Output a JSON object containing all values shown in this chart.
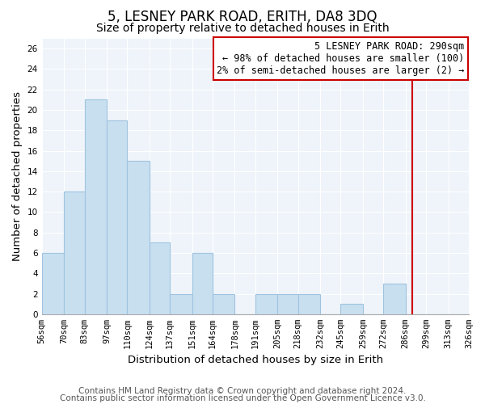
{
  "title": "5, LESNEY PARK ROAD, ERITH, DA8 3DQ",
  "subtitle": "Size of property relative to detached houses in Erith",
  "xlabel": "Distribution of detached houses by size in Erith",
  "ylabel": "Number of detached properties",
  "bar_color": "#c8dff0",
  "bar_edge_color": "#a0c4df",
  "tick_labels": [
    "56sqm",
    "70sqm",
    "83sqm",
    "97sqm",
    "110sqm",
    "124sqm",
    "137sqm",
    "151sqm",
    "164sqm",
    "178sqm",
    "191sqm",
    "205sqm",
    "218sqm",
    "232sqm",
    "245sqm",
    "259sqm",
    "272sqm",
    "286sqm",
    "299sqm",
    "313sqm",
    "326sqm"
  ],
  "bar_heights": [
    6,
    12,
    21,
    19,
    15,
    7,
    2,
    6,
    2,
    0,
    2,
    2,
    2,
    0,
    1,
    0,
    3,
    0,
    0,
    0
  ],
  "ylim": [
    0,
    27
  ],
  "yticks": [
    0,
    2,
    4,
    6,
    8,
    10,
    12,
    14,
    16,
    18,
    20,
    22,
    24,
    26
  ],
  "property_line_x": 290,
  "bin_edges": [
    56,
    70,
    83,
    97,
    110,
    124,
    137,
    151,
    164,
    178,
    191,
    205,
    218,
    232,
    245,
    259,
    272,
    286,
    299,
    313,
    326
  ],
  "annotation_title": "5 LESNEY PARK ROAD: 290sqm",
  "annotation_line1": "← 98% of detached houses are smaller (100)",
  "annotation_line2": "2% of semi-detached houses are larger (2) →",
  "annotation_box_color": "#ffffff",
  "annotation_border_color": "#cc0000",
  "red_line_color": "#cc0000",
  "footnote1": "Contains HM Land Registry data © Crown copyright and database right 2024.",
  "footnote2": "Contains public sector information licensed under the Open Government Licence v3.0.",
  "title_fontsize": 12,
  "subtitle_fontsize": 10,
  "axis_label_fontsize": 9.5,
  "tick_fontsize": 7.5,
  "annotation_fontsize": 8.5,
  "footnote_fontsize": 7.5
}
